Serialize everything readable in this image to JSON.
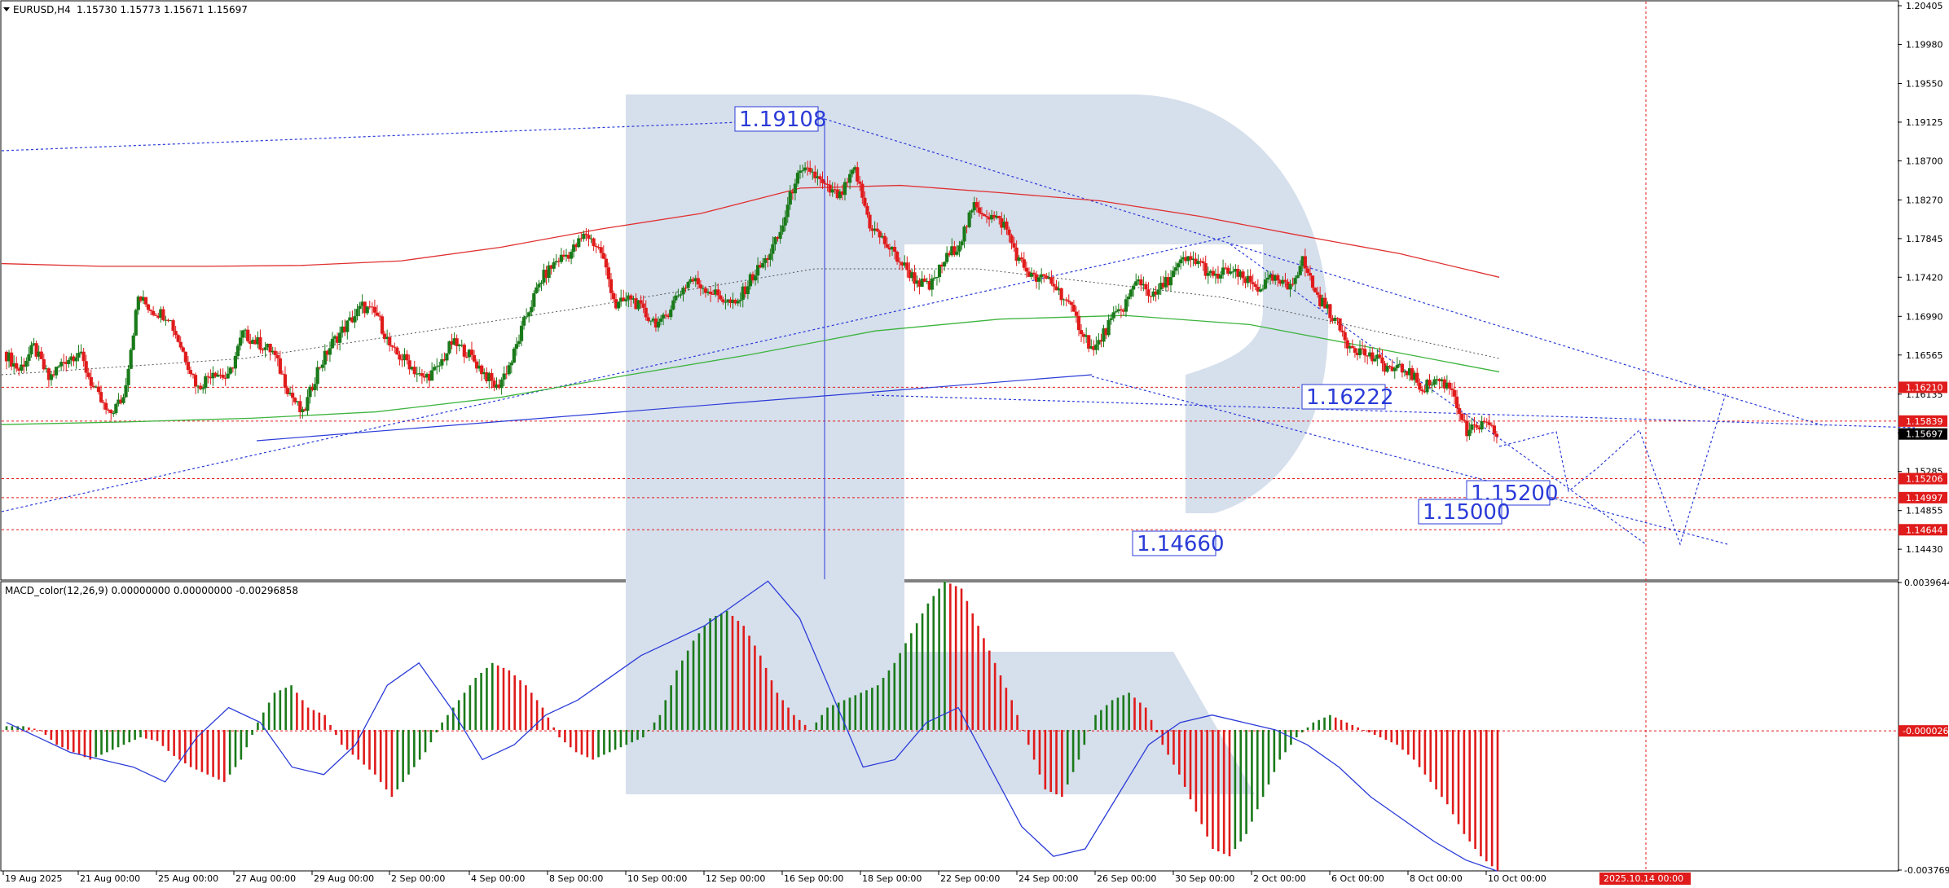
{
  "header": {
    "symbol": "EURUSD,H4",
    "ohlc": "1.15730 1.15773 1.15671 1.15697"
  },
  "macd_header": "MACD_color(12,26,9) 0.00000000 0.00000000 -0.00296858",
  "colors": {
    "bull": "#1a7a1a",
    "bear": "#e01b1b",
    "annotation": "#2a3bd8",
    "ma_red": "#e03030",
    "ma_green": "#3cb43c",
    "macd_signal": "#2a3bd8",
    "watermark": "#d6dfec"
  },
  "chart_data": [
    {
      "type": "candlestick",
      "title": "EURUSD,H4",
      "ylim": [
        1.141,
        1.2045
      ],
      "x_labels": [
        "19 Aug 2025",
        "21 Aug 00:00",
        "25 Aug 00:00",
        "27 Aug 00:00",
        "29 Aug 00:00",
        "2 Sep 00:00",
        "4 Sep 00:00",
        "8 Sep 00:00",
        "10 Sep 00:00",
        "12 Sep 00:00",
        "16 Sep 00:00",
        "18 Sep 00:00",
        "22 Sep 00:00",
        "24 Sep 00:00",
        "26 Sep 00:00",
        "30 Sep 00:00",
        "2 Oct 00:00",
        "6 Oct 00:00",
        "8 Oct 00:00",
        "10 Oct 00:00"
      ],
      "forecast_date_label": "2025.10.14 00:00",
      "price_axis_ticks": [
        "1.20405",
        "1.19980",
        "1.19550",
        "1.19125",
        "1.18700",
        "1.18270",
        "1.17845",
        "1.17420",
        "1.16990",
        "1.16565",
        "1.16135",
        "1.15710",
        "1.15285",
        "1.14855",
        "1.14430"
      ],
      "level_labels": [
        {
          "value": 1.1621,
          "text": "1.16210",
          "color": "#e01b1b"
        },
        {
          "value": 1.15839,
          "text": "1.15839",
          "color": "#e01b1b"
        },
        {
          "value": 1.15697,
          "text": "1.15697",
          "color": "#000000"
        },
        {
          "value": 1.15206,
          "text": "1.15206",
          "color": "#e01b1b"
        },
        {
          "value": 1.14997,
          "text": "1.14997",
          "color": "#e01b1b"
        },
        {
          "value": 1.14644,
          "text": "1.14644",
          "color": "#e01b1b"
        }
      ],
      "annotations": [
        {
          "text": "1.19108",
          "value": 1.19108
        },
        {
          "text": "1.16222",
          "value": 1.16222
        },
        {
          "text": "1.15200",
          "value": 1.152
        },
        {
          "text": "1.15000",
          "value": 1.15
        },
        {
          "text": "1.14660",
          "value": 1.1466
        }
      ],
      "close_path": [
        1.166,
        1.164,
        1.1665,
        1.163,
        1.165,
        1.166,
        1.162,
        1.159,
        1.161,
        1.172,
        1.1705,
        1.17,
        1.166,
        1.162,
        1.164,
        1.163,
        1.168,
        1.167,
        1.166,
        1.162,
        1.159,
        1.164,
        1.167,
        1.169,
        1.171,
        1.17,
        1.166,
        1.165,
        1.163,
        1.164,
        1.167,
        1.166,
        1.164,
        1.162,
        1.165,
        1.17,
        1.174,
        1.176,
        1.177,
        1.179,
        1.177,
        1.171,
        1.172,
        1.17,
        1.169,
        1.172,
        1.174,
        1.173,
        1.172,
        1.171,
        1.174,
        1.176,
        1.179,
        1.185,
        1.186,
        1.184,
        1.183,
        1.186,
        1.18,
        1.178,
        1.176,
        1.174,
        1.173,
        1.176,
        1.178,
        1.182,
        1.181,
        1.18,
        1.176,
        1.174,
        1.174,
        1.172,
        1.169,
        1.166,
        1.169,
        1.171,
        1.174,
        1.172,
        1.174,
        1.176,
        1.176,
        1.174,
        1.175,
        1.174,
        1.173,
        1.174,
        1.173,
        1.176,
        1.172,
        1.17,
        1.167,
        1.166,
        1.165,
        1.164,
        1.164,
        1.162,
        1.163,
        1.162,
        1.157,
        1.158,
        1.157
      ],
      "moving_averages": [
        {
          "color": "#e03030",
          "values": [
            1.1757,
            1.1754,
            1.1754,
            1.1755,
            1.176,
            1.1775,
            1.1795,
            1.1812,
            1.184,
            1.1843,
            1.1835,
            1.1826,
            1.1809,
            1.1788,
            1.1768,
            1.1742
          ]
        },
        {
          "color": "#3cb43c",
          "values": [
            1.158,
            1.1583,
            1.1587,
            1.1594,
            1.161,
            1.1634,
            1.1657,
            1.1683,
            1.1696,
            1.17,
            1.169,
            1.1664,
            1.1638
          ]
        }
      ]
    },
    {
      "type": "bar",
      "title": "MACD_color(12,26,9) 0.00000000 0.00000000 -0.00296858",
      "ylim": [
        -0.0037693,
        0.0039644
      ],
      "axis_ticks": [
        "0.0039644",
        "-0.0037693"
      ],
      "level_label": "-0.000026",
      "histogram": [
        0.0001,
        0.0001,
        0.0,
        -0.0004,
        -0.0006,
        -0.0008,
        -0.0006,
        -0.0004,
        -0.0002,
        -0.0003,
        -0.0007,
        -0.001,
        -0.0012,
        -0.0014,
        -0.0008,
        0.0002,
        0.001,
        0.0012,
        0.0006,
        0.0004,
        -0.0004,
        -0.0008,
        -0.0012,
        -0.0018,
        -0.0012,
        -0.0006,
        0.0002,
        0.0008,
        0.0014,
        0.0018,
        0.0016,
        0.0012,
        0.0006,
        -0.0002,
        -0.0006,
        -0.0008,
        -0.0006,
        -0.0004,
        -0.0002,
        0.0004,
        0.0016,
        0.0024,
        0.003,
        0.0032,
        0.0028,
        0.002,
        0.001,
        0.0004,
        0.0,
        0.0006,
        0.0008,
        0.001,
        0.0012,
        0.0018,
        0.0026,
        0.0034,
        0.004,
        0.0038,
        0.0028,
        0.0018,
        0.0008,
        -0.0004,
        -0.0016,
        -0.0018,
        -0.0008,
        0.0004,
        0.0008,
        0.001,
        0.0006,
        -0.0004,
        -0.0012,
        -0.0022,
        -0.0032,
        -0.0034,
        -0.0028,
        -0.0018,
        -0.0008,
        -0.0002,
        0.0002,
        0.0004,
        0.0002,
        0.0,
        -0.0002,
        -0.0004,
        -0.0008,
        -0.0014,
        -0.002,
        -0.0028,
        -0.0034,
        -0.0038
      ],
      "signal_path": [
        0.0002,
        -0.0002,
        -0.0006,
        -0.0008,
        -0.001,
        -0.0014,
        -0.0002,
        0.0006,
        0.0002,
        -0.001,
        -0.0012,
        -0.0004,
        0.0012,
        0.0018,
        0.0006,
        -0.0008,
        -0.0004,
        0.0004,
        0.0008,
        0.0014,
        0.002,
        0.0024,
        0.0028,
        0.0034,
        0.004,
        0.003,
        0.001,
        -0.001,
        -0.0008,
        0.0002,
        0.0006,
        -0.001,
        -0.0026,
        -0.0034,
        -0.0032,
        -0.0018,
        -0.0004,
        0.0002,
        0.0004,
        0.0002,
        0.0,
        -0.0004,
        -0.001,
        -0.0018,
        -0.0024,
        -0.003,
        -0.0035,
        -0.0038
      ]
    }
  ]
}
